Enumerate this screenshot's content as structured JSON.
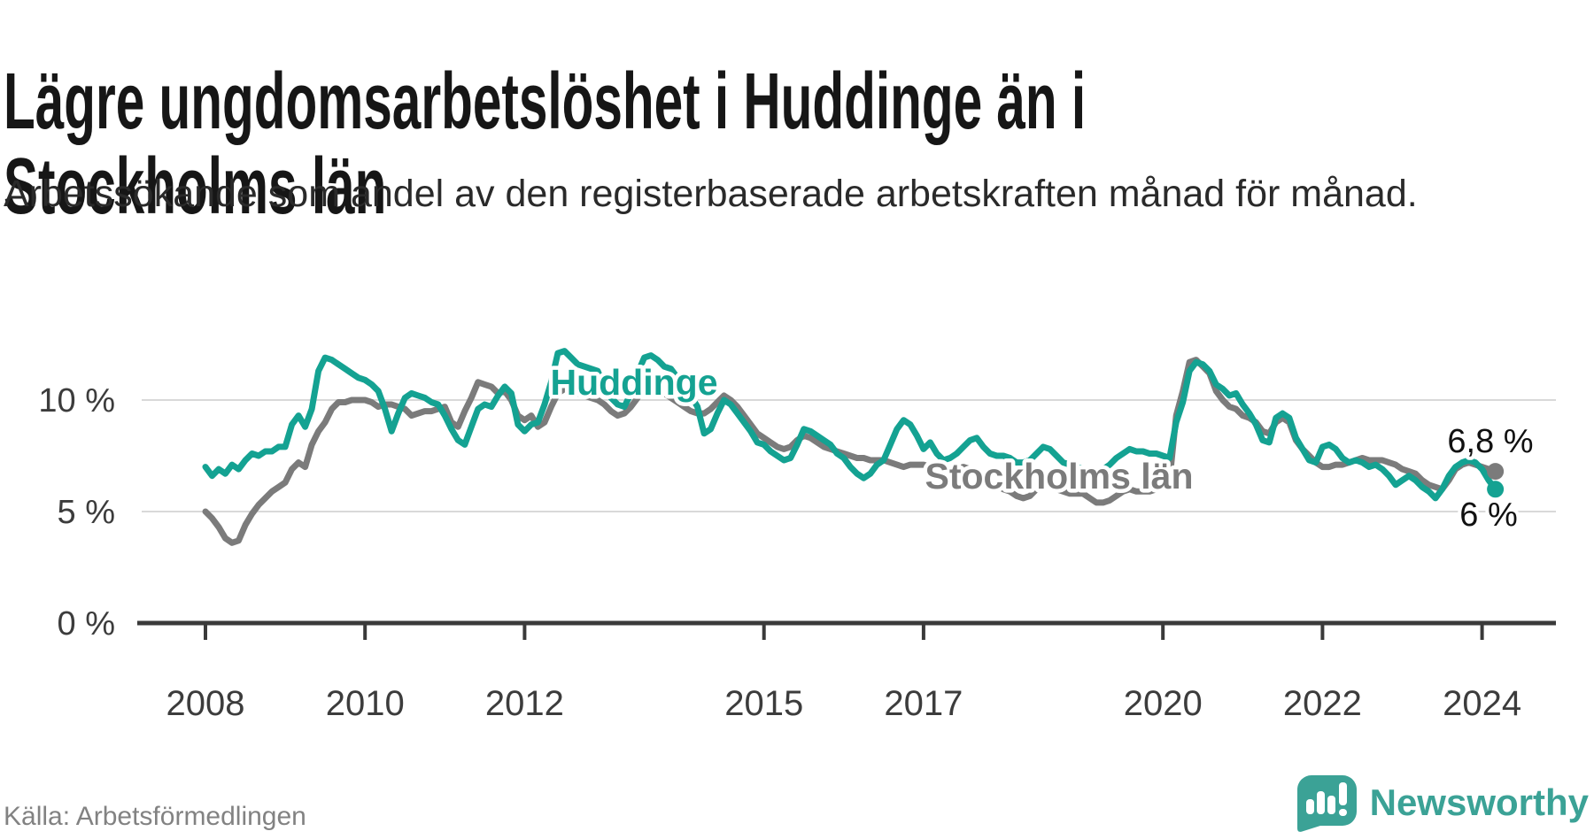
{
  "chart_data": {
    "type": "line",
    "title": "Lägre ungdomsarbetslöshet i Huddinge än i Stockholms län",
    "subtitle": "Arbetssökande som andel av den registerbaserade arbetskraften månad för månad.",
    "x_interval": "monthly",
    "x_start": "2008-01",
    "x_end": "2024-03",
    "ylim": [
      0,
      12.5
    ],
    "grid": "horizontal",
    "legend_position": "inline-labels",
    "yticks": [
      {
        "value": 10,
        "label": "10 %"
      },
      {
        "value": 5,
        "label": "5 %"
      },
      {
        "value": 0,
        "label": "0 %"
      }
    ],
    "xticks": [
      {
        "year": 2008,
        "label": "2008"
      },
      {
        "year": 2010,
        "label": "2010"
      },
      {
        "year": 2012,
        "label": "2012"
      },
      {
        "year": 2015,
        "label": "2015"
      },
      {
        "year": 2017,
        "label": "2017"
      },
      {
        "year": 2020,
        "label": "2020"
      },
      {
        "year": 2022,
        "label": "2022"
      },
      {
        "year": 2024,
        "label": "2024"
      }
    ],
    "series": [
      {
        "name": "Stockholms län",
        "color": "#7b7b7b",
        "end_value": 6.8,
        "end_label": "6,8 %",
        "values": [
          5.0,
          4.7,
          4.3,
          3.8,
          3.6,
          3.7,
          4.4,
          4.9,
          5.3,
          5.6,
          5.9,
          6.1,
          6.3,
          6.9,
          7.2,
          7.0,
          8.0,
          8.6,
          9.0,
          9.6,
          9.9,
          9.9,
          10.0,
          10.0,
          10.0,
          9.9,
          9.7,
          9.8,
          9.8,
          9.7,
          9.6,
          9.3,
          9.4,
          9.5,
          9.5,
          9.6,
          9.7,
          9.0,
          8.8,
          9.5,
          10.1,
          10.8,
          10.7,
          10.6,
          10.3,
          10.4,
          10.0,
          9.3,
          9.1,
          9.3,
          8.8,
          9.0,
          9.7,
          10.3,
          10.5,
          10.4,
          10.3,
          10.2,
          10.1,
          10.0,
          9.8,
          9.5,
          9.3,
          9.4,
          9.7,
          10.1,
          10.5,
          10.6,
          10.5,
          10.3,
          10.1,
          9.9,
          9.7,
          9.5,
          9.4,
          9.4,
          9.6,
          9.9,
          10.2,
          10.0,
          9.7,
          9.3,
          8.9,
          8.5,
          8.3,
          8.1,
          7.9,
          7.8,
          7.9,
          8.2,
          8.4,
          8.3,
          8.1,
          7.9,
          7.8,
          7.7,
          7.6,
          7.5,
          7.4,
          7.4,
          7.3,
          7.3,
          7.3,
          7.2,
          7.1,
          7.0,
          7.1,
          7.1,
          7.1,
          7.0,
          6.9,
          6.8,
          6.8,
          6.9,
          7.0,
          6.9,
          6.7,
          6.5,
          6.3,
          6.2,
          6.0,
          5.9,
          5.7,
          5.6,
          5.7,
          6.0,
          6.2,
          6.2,
          6.0,
          5.9,
          5.8,
          5.8,
          5.8,
          5.6,
          5.4,
          5.4,
          5.5,
          5.7,
          5.9,
          6.0,
          5.9,
          5.9,
          5.9,
          6.0,
          6.2,
          6.4,
          9.3,
          10.4,
          11.7,
          11.8,
          11.5,
          11.2,
          10.4,
          10.0,
          9.7,
          9.6,
          9.3,
          9.2,
          9.0,
          8.6,
          8.5,
          9.0,
          9.2,
          9.0,
          8.2,
          7.8,
          7.5,
          7.2,
          7.0,
          7.0,
          7.1,
          7.1,
          7.2,
          7.3,
          7.4,
          7.3,
          7.3,
          7.3,
          7.2,
          7.1,
          6.9,
          6.8,
          6.7,
          6.4,
          6.2,
          6.1,
          6.0,
          6.4,
          6.9,
          7.1,
          7.2,
          7.1,
          7.0,
          6.9,
          6.8
        ]
      },
      {
        "name": "Huddinge",
        "color": "#14a292",
        "end_value": 6.0,
        "end_label": "6 %",
        "values": [
          7.0,
          6.6,
          6.9,
          6.7,
          7.1,
          6.9,
          7.3,
          7.6,
          7.5,
          7.7,
          7.7,
          7.9,
          7.9,
          8.9,
          9.3,
          8.8,
          9.6,
          11.3,
          11.9,
          11.8,
          11.6,
          11.4,
          11.2,
          11.0,
          10.9,
          10.7,
          10.4,
          9.6,
          8.6,
          9.4,
          10.1,
          10.3,
          10.2,
          10.1,
          9.9,
          9.8,
          9.3,
          8.7,
          8.2,
          8.0,
          8.8,
          9.6,
          9.8,
          9.7,
          10.2,
          10.6,
          10.3,
          8.9,
          8.6,
          8.9,
          9.0,
          9.8,
          10.8,
          12.1,
          12.2,
          11.9,
          11.6,
          11.5,
          11.4,
          11.3,
          10.6,
          10.1,
          9.8,
          9.7,
          10.3,
          11.2,
          11.9,
          12.0,
          11.8,
          11.5,
          11.4,
          11.0,
          10.5,
          10.2,
          9.7,
          8.5,
          8.7,
          9.4,
          10.0,
          9.8,
          9.4,
          9.0,
          8.6,
          8.1,
          8.0,
          7.7,
          7.5,
          7.3,
          7.4,
          8.0,
          8.7,
          8.6,
          8.4,
          8.2,
          8.0,
          7.6,
          7.4,
          7.0,
          6.7,
          6.5,
          6.7,
          7.1,
          7.3,
          8.0,
          8.7,
          9.1,
          8.9,
          8.4,
          7.8,
          8.1,
          7.6,
          7.3,
          7.4,
          7.6,
          7.9,
          8.2,
          8.3,
          7.9,
          7.6,
          7.5,
          7.5,
          7.4,
          7.2,
          7.2,
          7.3,
          7.6,
          7.9,
          7.8,
          7.5,
          7.2,
          7.1,
          7.0,
          6.9,
          6.7,
          6.6,
          6.9,
          7.1,
          7.4,
          7.6,
          7.8,
          7.7,
          7.7,
          7.6,
          7.6,
          7.5,
          7.4,
          9.0,
          9.9,
          11.3,
          11.7,
          11.6,
          11.3,
          10.7,
          10.5,
          10.2,
          10.3,
          9.8,
          9.4,
          8.9,
          8.2,
          8.1,
          9.2,
          9.4,
          9.2,
          8.3,
          7.8,
          7.3,
          7.2,
          7.9,
          8.0,
          7.8,
          7.4,
          7.2,
          7.3,
          7.2,
          7.0,
          7.1,
          6.9,
          6.6,
          6.2,
          6.4,
          6.6,
          6.4,
          6.1,
          5.9,
          5.6,
          6.0,
          6.6,
          7.0,
          7.2,
          7.3,
          7.2,
          6.9,
          6.4,
          6.0
        ]
      }
    ]
  },
  "footer": {
    "source": "Källa: Arbetsförmedlingen",
    "logo_text": "Newsworthy",
    "logo_color": "#3ba296"
  }
}
